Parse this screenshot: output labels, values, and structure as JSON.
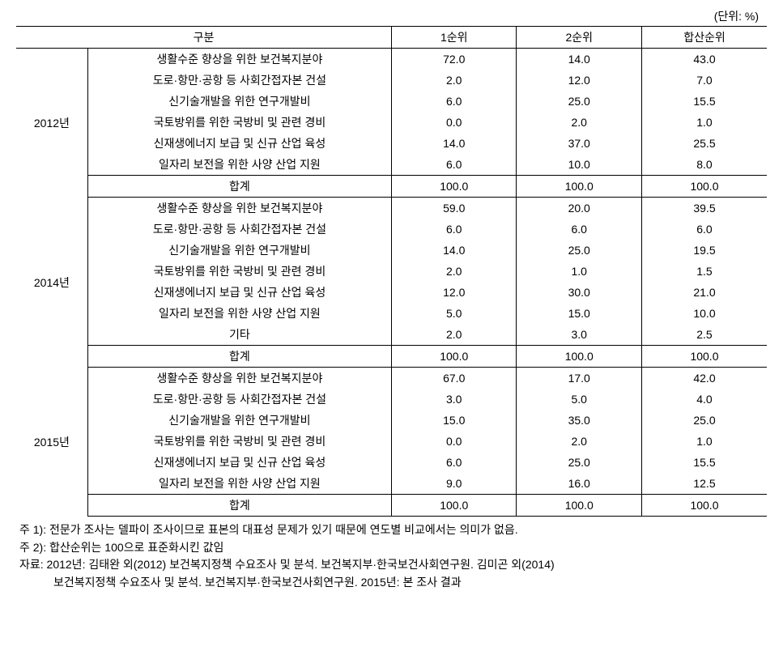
{
  "unit_label": "(단위: %)",
  "header": {
    "category": "구분",
    "rank1": "1순위",
    "rank2": "2순위",
    "ranksum": "합산순위"
  },
  "groups": [
    {
      "year": "2012년",
      "rows": [
        {
          "label": "생활수준 향상을 위한 보건복지분야",
          "r1": "72.0",
          "r2": "14.0",
          "rs": "43.0"
        },
        {
          "label": "도로·항만·공항 등 사회간접자본 건설",
          "r1": "2.0",
          "r2": "12.0",
          "rs": "7.0"
        },
        {
          "label": "신기술개발을 위한 연구개발비",
          "r1": "6.0",
          "r2": "25.0",
          "rs": "15.5"
        },
        {
          "label": "국토방위를 위한 국방비 및 관련 경비",
          "r1": "0.0",
          "r2": "2.0",
          "rs": "1.0"
        },
        {
          "label": "신재생에너지 보급 및 신규 산업 육성",
          "r1": "14.0",
          "r2": "37.0",
          "rs": "25.5"
        },
        {
          "label": "일자리 보전을 위한 사양 산업 지원",
          "r1": "6.0",
          "r2": "10.0",
          "rs": "8.0"
        }
      ],
      "sum": {
        "label": "합계",
        "r1": "100.0",
        "r2": "100.0",
        "rs": "100.0"
      }
    },
    {
      "year": "2014년",
      "rows": [
        {
          "label": "생활수준 향상을 위한 보건복지분야",
          "r1": "59.0",
          "r2": "20.0",
          "rs": "39.5"
        },
        {
          "label": "도로·항만·공항 등 사회간접자본 건설",
          "r1": "6.0",
          "r2": "6.0",
          "rs": "6.0"
        },
        {
          "label": "신기술개발을 위한 연구개발비",
          "r1": "14.0",
          "r2": "25.0",
          "rs": "19.5"
        },
        {
          "label": "국토방위를 위한 국방비 및 관련 경비",
          "r1": "2.0",
          "r2": "1.0",
          "rs": "1.5"
        },
        {
          "label": "신재생에너지 보급 및 신규 산업 육성",
          "r1": "12.0",
          "r2": "30.0",
          "rs": "21.0"
        },
        {
          "label": "일자리 보전을 위한 사양 산업 지원",
          "r1": "5.0",
          "r2": "15.0",
          "rs": "10.0"
        },
        {
          "label": "기타",
          "r1": "2.0",
          "r2": "3.0",
          "rs": "2.5"
        }
      ],
      "sum": {
        "label": "합계",
        "r1": "100.0",
        "r2": "100.0",
        "rs": "100.0"
      }
    },
    {
      "year": "2015년",
      "rows": [
        {
          "label": "생활수준 향상을 위한 보건복지분야",
          "r1": "67.0",
          "r2": "17.0",
          "rs": "42.0"
        },
        {
          "label": "도로·항만·공항 등 사회간접자본 건설",
          "r1": "3.0",
          "r2": "5.0",
          "rs": "4.0"
        },
        {
          "label": "신기술개발을 위한 연구개발비",
          "r1": "15.0",
          "r2": "35.0",
          "rs": "25.0"
        },
        {
          "label": "국토방위를 위한 국방비 및 관련 경비",
          "r1": "0.0",
          "r2": "2.0",
          "rs": "1.0"
        },
        {
          "label": "신재생에너지 보급 및 신규 산업 육성",
          "r1": "6.0",
          "r2": "25.0",
          "rs": "15.5"
        },
        {
          "label": "일자리 보전을 위한 사양 산업 지원",
          "r1": "9.0",
          "r2": "16.0",
          "rs": "12.5"
        }
      ],
      "sum": {
        "label": "합계",
        "r1": "100.0",
        "r2": "100.0",
        "rs": "100.0"
      }
    }
  ],
  "notes": {
    "n1": "주 1): 전문가 조사는 델파이 조사이므로 표본의 대표성 문제가 있기 때문에 연도별 비교에서는 의미가 없음.",
    "n2": "주 2): 합산순위는 100으로 표준화시킨 값임",
    "src1": "자료: 2012년: 김태완 외(2012) 보건복지정책 수요조사 및 분석. 보건복지부·한국보건사회연구원. 김미곤 외(2014)",
    "src2": "보건복지정책 수요조사 및 분석. 보건복지부·한국보건사회연구원. 2015년: 본 조사 결과"
  }
}
